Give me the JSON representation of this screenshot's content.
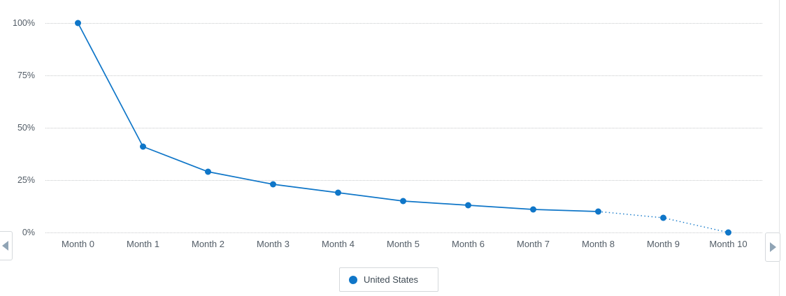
{
  "chart_data": {
    "type": "line",
    "title": "",
    "xlabel": "",
    "ylabel": "",
    "categories": [
      "Month 0",
      "Month 1",
      "Month 2",
      "Month 3",
      "Month 4",
      "Month 5",
      "Month 6",
      "Month 7",
      "Month 8",
      "Month 9",
      "Month 10"
    ],
    "series": [
      {
        "name": "United States",
        "values": [
          100,
          41,
          29,
          23,
          19,
          15,
          13,
          11,
          10,
          7,
          0
        ],
        "color": "#0f76c8",
        "dotted_from_index": 8
      }
    ],
    "ytick_labels": [
      "100%",
      "75%",
      "50%",
      "25%",
      "0%"
    ],
    "ytick_values": [
      100,
      75,
      50,
      25,
      0
    ],
    "ylim": [
      0,
      100
    ],
    "grid": "horizontal-dotted",
    "legend_position": "bottom-center"
  },
  "legend": {
    "label": "United States",
    "marker_color": "#0f76c8",
    "marker_icon": "series-dot"
  },
  "nav": {
    "prev_icon": "chevron-left",
    "next_icon": "chevron-right"
  },
  "colors": {
    "series_blue": "#0f76c8",
    "axis_text": "#525c66",
    "gridline": "#c7c9cb",
    "border": "#d5d8db",
    "chevron": "#90a4b5"
  }
}
